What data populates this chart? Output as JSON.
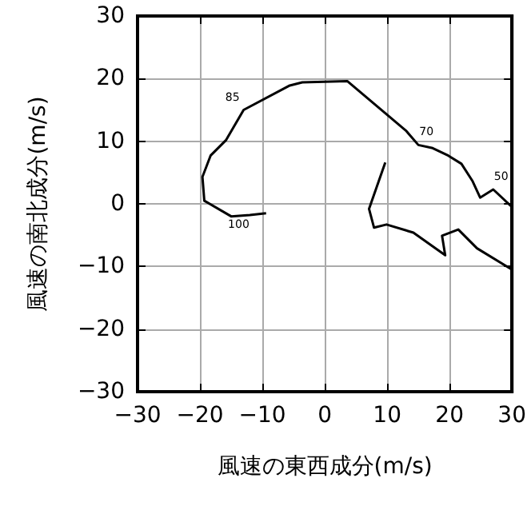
{
  "chart_data": {
    "type": "line",
    "xlabel": "風速の東西成分(m/s)",
    "ylabel": "風速の南北成分(m/s)",
    "x": [
      -9.4,
      -12,
      -15,
      -19.3,
      -19.6,
      -18.3,
      -15.8,
      -13,
      -5.6,
      -3.6,
      3.6,
      13,
      15,
      17.3,
      19.8,
      21.9,
      23.7,
      24.9,
      27,
      30,
      null,
      30,
      24.4,
      21.4,
      18.8,
      19.3,
      14.2,
      9.9,
      7.9,
      7.1,
      9.7
    ],
    "series": [
      {
        "color": "#000000",
        "values": [
          -1.5,
          -1.8,
          -2,
          0.5,
          4.3,
          7.7,
          10.2,
          15,
          18.9,
          19.4,
          19.6,
          11.7,
          9.4,
          8.9,
          7.7,
          6.4,
          3.6,
          1,
          2.3,
          -0.5,
          null,
          -10.5,
          -7.1,
          -4.1,
          -5.1,
          -8.2,
          -4.6,
          -3.3,
          -3.8,
          -0.8,
          6.6
        ]
      }
    ],
    "xlim": [
      -30,
      30
    ],
    "ylim": [
      -30,
      30
    ],
    "xticks": [
      -30,
      -20,
      -10,
      0,
      10,
      20,
      30
    ],
    "yticks": [
      -30,
      -20,
      -10,
      0,
      10,
      20,
      30
    ],
    "grid": true,
    "marker": "none",
    "line_style": "solid",
    "annotations": [
      {
        "text": "85",
        "x": -13,
        "y": 15
      },
      {
        "text": "70",
        "x": 15,
        "y": 9.4
      },
      {
        "text": "50",
        "x": 27,
        "y": 2.3
      },
      {
        "text": "100",
        "x": -12,
        "y": -1.8
      }
    ]
  }
}
